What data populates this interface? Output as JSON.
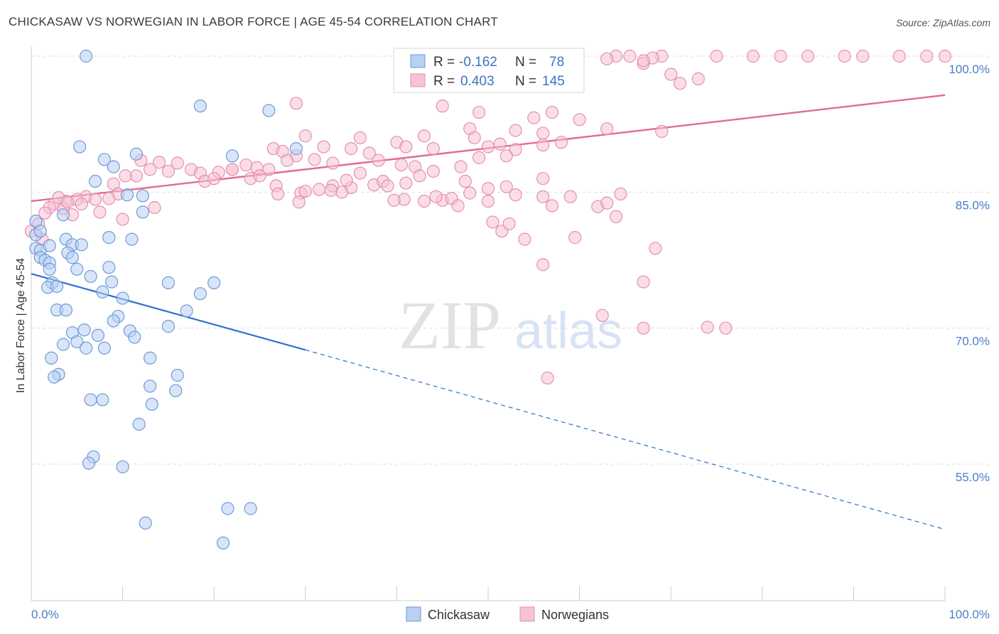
{
  "title": "CHICKASAW VS NORWEGIAN IN LABOR FORCE | AGE 45-54 CORRELATION CHART",
  "source": "Source: ZipAtlas.com",
  "watermark": {
    "zip": "ZIP",
    "atlas": "atlas"
  },
  "colors": {
    "chickasaw_fill": "#b8d0f2",
    "chickasaw_stroke": "#6f9ad8",
    "chickasaw_line": "#2f6fcc",
    "norwegians_fill": "#f6c3d4",
    "norwegians_stroke": "#e68fad",
    "norwegians_line": "#e06b93",
    "grid": "#dcdcdc",
    "tick_text": "#4a7ec8"
  },
  "legend": {
    "rows": [
      {
        "series": "Chickasaw",
        "r_label": "R =",
        "r_value": "-0.162",
        "n_label": "N =",
        "n_value": "78"
      },
      {
        "series": "Norwegians",
        "r_label": "R =",
        "r_value": "0.403",
        "n_label": "N =",
        "n_value": "145"
      }
    ]
  },
  "chart_data": {
    "type": "scatter",
    "xlabel": "",
    "ylabel": "In Labor Force | Age 45-54",
    "xlim": [
      0,
      100
    ],
    "ylim": [
      42,
      100.5
    ],
    "x_tick_labels": [
      {
        "value": 0,
        "label": "0.0%"
      },
      {
        "value": 100,
        "label": "100.0%"
      }
    ],
    "y_tick_labels": [
      {
        "value": 100,
        "label": "100.0%"
      },
      {
        "value": 85,
        "label": "85.0%"
      },
      {
        "value": 70,
        "label": "70.0%"
      },
      {
        "value": 55,
        "label": "55.0%"
      }
    ],
    "grid": true,
    "legend_position": "bottom-center",
    "series": [
      {
        "name": "Chickasaw",
        "trend": {
          "x0": 0,
          "y0": 76.0,
          "x_solid_end": 30,
          "y_solid_end": 67.6,
          "x1": 100,
          "y1": 47.8
        },
        "points": [
          [
            6,
            100
          ],
          [
            18.5,
            94.5
          ],
          [
            26,
            94
          ],
          [
            5.3,
            90
          ],
          [
            8,
            88.6
          ],
          [
            9,
            87.8
          ],
          [
            11.5,
            89.2
          ],
          [
            22,
            89
          ],
          [
            29,
            89.8
          ],
          [
            7,
            86.2
          ],
          [
            10.5,
            84.7
          ],
          [
            12.2,
            84.6
          ],
          [
            12.2,
            82.8
          ],
          [
            3.5,
            82.5
          ],
          [
            0.5,
            81.8
          ],
          [
            0.5,
            80.3
          ],
          [
            0.5,
            78.8
          ],
          [
            1,
            78.6
          ],
          [
            1,
            77.8
          ],
          [
            1.5,
            77.5
          ],
          [
            2,
            77.2
          ],
          [
            2,
            76.5
          ],
          [
            3.8,
            79.8
          ],
          [
            4.5,
            79.2
          ],
          [
            5.5,
            79.2
          ],
          [
            4,
            78.3
          ],
          [
            8.5,
            80
          ],
          [
            11,
            79.8
          ],
          [
            4.5,
            77.8
          ],
          [
            5,
            76.5
          ],
          [
            8.5,
            76.7
          ],
          [
            6.5,
            75.7
          ],
          [
            8.8,
            75.1
          ],
          [
            2.3,
            75
          ],
          [
            1.8,
            74.5
          ],
          [
            2.8,
            74.6
          ],
          [
            7.8,
            74
          ],
          [
            10,
            73.3
          ],
          [
            15,
            75
          ],
          [
            20,
            75
          ],
          [
            18.5,
            73.8
          ],
          [
            2.8,
            72
          ],
          [
            3.8,
            72
          ],
          [
            9.5,
            71.3
          ],
          [
            9,
            70.8
          ],
          [
            17,
            71.9
          ],
          [
            15,
            70.2
          ],
          [
            4.5,
            69.5
          ],
          [
            5.8,
            69.8
          ],
          [
            7.3,
            69.2
          ],
          [
            10.8,
            69.7
          ],
          [
            11.3,
            69
          ],
          [
            5,
            68.5
          ],
          [
            3.5,
            68.2
          ],
          [
            6,
            67.8
          ],
          [
            8,
            67.8
          ],
          [
            13,
            66.7
          ],
          [
            2.2,
            66.7
          ],
          [
            3,
            64.9
          ],
          [
            2.5,
            64.6
          ],
          [
            16,
            64.8
          ],
          [
            13,
            63.6
          ],
          [
            15.8,
            63.1
          ],
          [
            6.5,
            62.1
          ],
          [
            7.8,
            62.1
          ],
          [
            13.2,
            61.6
          ],
          [
            11.8,
            59.4
          ],
          [
            6.8,
            55.8
          ],
          [
            6.3,
            55.1
          ],
          [
            10,
            54.7
          ],
          [
            21.5,
            50.1
          ],
          [
            24,
            50.1
          ],
          [
            12.5,
            48.5
          ],
          [
            21,
            46.3
          ],
          [
            1,
            80.7
          ],
          [
            2,
            79.1
          ]
        ]
      },
      {
        "name": "Norwegians",
        "trend": {
          "x0": 0,
          "y0": 84.0,
          "x1": 100,
          "y1": 95.7
        },
        "points": [
          [
            59,
            100
          ],
          [
            64,
            100
          ],
          [
            65.5,
            100
          ],
          [
            69,
            100
          ],
          [
            75,
            100
          ],
          [
            79,
            100
          ],
          [
            82,
            100
          ],
          [
            85,
            100
          ],
          [
            89,
            100
          ],
          [
            91,
            100
          ],
          [
            95,
            100
          ],
          [
            98,
            100
          ],
          [
            100,
            100
          ],
          [
            67,
            99.2
          ],
          [
            68,
            99.8
          ],
          [
            63,
            99.7
          ],
          [
            67,
            99.5
          ],
          [
            70,
            98
          ],
          [
            71,
            97
          ],
          [
            73,
            97.5
          ],
          [
            29,
            94.8
          ],
          [
            45,
            94.5
          ],
          [
            49,
            93.8
          ],
          [
            55,
            93.2
          ],
          [
            57,
            93.8
          ],
          [
            60,
            93
          ],
          [
            48,
            92
          ],
          [
            53,
            91.8
          ],
          [
            56,
            91.5
          ],
          [
            63,
            92
          ],
          [
            69,
            91.7
          ],
          [
            30,
            91.2
          ],
          [
            36,
            91
          ],
          [
            43,
            91.2
          ],
          [
            48.5,
            91
          ],
          [
            32,
            90
          ],
          [
            35,
            89.8
          ],
          [
            37,
            89.3
          ],
          [
            40,
            90.5
          ],
          [
            41,
            90
          ],
          [
            44,
            89.8
          ],
          [
            50,
            90
          ],
          [
            51.3,
            90.3
          ],
          [
            53,
            89.7
          ],
          [
            56,
            90.2
          ],
          [
            58,
            90.5
          ],
          [
            26.5,
            89.8
          ],
          [
            27.5,
            89.5
          ],
          [
            29,
            89
          ],
          [
            31,
            88.6
          ],
          [
            28,
            88.5
          ],
          [
            33,
            88.2
          ],
          [
            38,
            88.5
          ],
          [
            40.5,
            88
          ],
          [
            42,
            87.8
          ],
          [
            44,
            87.3
          ],
          [
            47,
            87.8
          ],
          [
            49,
            88.8
          ],
          [
            52,
            89
          ],
          [
            26,
            87.5
          ],
          [
            23.5,
            88
          ],
          [
            24.7,
            87.7
          ],
          [
            24,
            86.5
          ],
          [
            20.5,
            87.2
          ],
          [
            22,
            87.5
          ],
          [
            16,
            88.2
          ],
          [
            17.5,
            87.5
          ],
          [
            18.5,
            87.1
          ],
          [
            15,
            87.3
          ],
          [
            14,
            88.3
          ],
          [
            13,
            87.5
          ],
          [
            12,
            88.5
          ],
          [
            11.5,
            86.8
          ],
          [
            10.3,
            86.8
          ],
          [
            9,
            85.9
          ],
          [
            9.5,
            84.8
          ],
          [
            6,
            84.5
          ],
          [
            7,
            84.2
          ],
          [
            8.5,
            84.3
          ],
          [
            5,
            84.2
          ],
          [
            3.8,
            84
          ],
          [
            2.5,
            83.7
          ],
          [
            2,
            83.3
          ],
          [
            1.5,
            82.7
          ],
          [
            3.5,
            83.2
          ],
          [
            4.5,
            82.5
          ],
          [
            36,
            87.1
          ],
          [
            35,
            85.5
          ],
          [
            33,
            85.7
          ],
          [
            34.5,
            86.3
          ],
          [
            37.5,
            85.8
          ],
          [
            38.5,
            86.2
          ],
          [
            31.5,
            85.3
          ],
          [
            26.8,
            85.7
          ],
          [
            27,
            84.8
          ],
          [
            29.5,
            84.9
          ],
          [
            30,
            85.1
          ],
          [
            34,
            85
          ],
          [
            39,
            85.7
          ],
          [
            42.5,
            86.8
          ],
          [
            41,
            86
          ],
          [
            47.5,
            86.2
          ],
          [
            50,
            85.4
          ],
          [
            52,
            85.6
          ],
          [
            48,
            84.9
          ],
          [
            45,
            84.1
          ],
          [
            43,
            84
          ],
          [
            46,
            84.3
          ],
          [
            40.8,
            84.2
          ],
          [
            46.7,
            83.5
          ],
          [
            56,
            86.5
          ],
          [
            56,
            84.5
          ],
          [
            53,
            84.7
          ],
          [
            57,
            83.5
          ],
          [
            59,
            84.5
          ],
          [
            62,
            83.4
          ],
          [
            50,
            84
          ],
          [
            50.5,
            81.7
          ],
          [
            51.5,
            80.7
          ],
          [
            54,
            79.8
          ],
          [
            63,
            83.8
          ],
          [
            64.5,
            84.8
          ],
          [
            64,
            82.3
          ],
          [
            59.5,
            80
          ],
          [
            52.3,
            81.5
          ],
          [
            56,
            77
          ],
          [
            67,
            75.1
          ],
          [
            67,
            70
          ],
          [
            62.5,
            71.4
          ],
          [
            74,
            70.1
          ],
          [
            76,
            70
          ],
          [
            68.3,
            78.8
          ],
          [
            56.5,
            64.5
          ],
          [
            0,
            80.7
          ],
          [
            0.8,
            81.5
          ],
          [
            1.2,
            79.8
          ],
          [
            3,
            84.4
          ],
          [
            4,
            83.9
          ],
          [
            5.5,
            83.7
          ],
          [
            7.5,
            82.8
          ],
          [
            10,
            82
          ],
          [
            13.5,
            83.3
          ],
          [
            19,
            86.2
          ],
          [
            20,
            86.5
          ],
          [
            22,
            87.5
          ],
          [
            25,
            86.8
          ],
          [
            29.3,
            83.9
          ],
          [
            32.8,
            85.2
          ],
          [
            39.7,
            84.1
          ],
          [
            44.3,
            84.5
          ]
        ]
      }
    ]
  },
  "bottom_legend": [
    {
      "label": "Chickasaw"
    },
    {
      "label": "Norwegians"
    }
  ]
}
